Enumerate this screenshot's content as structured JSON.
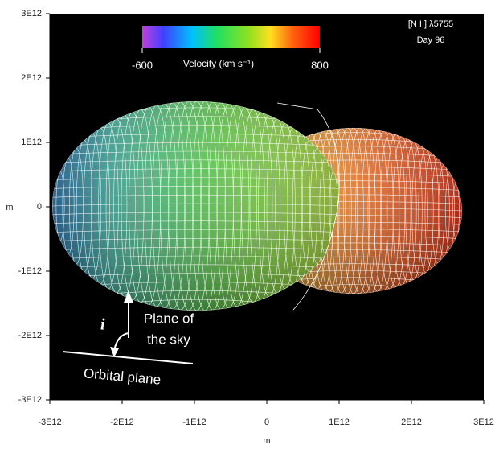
{
  "chart_data": {
    "type": "surface",
    "annotation": [
      "[N II] λ5755",
      "Day 96"
    ],
    "xlabel": "m",
    "ylabel": "m",
    "xlim": [
      -3000000000000.0,
      3000000000000.0
    ],
    "xticks": [
      {
        "value": -3000000000000.0,
        "label": "-3E12"
      },
      {
        "value": -2000000000000.0,
        "label": "-2E12"
      },
      {
        "value": -1000000000000.0,
        "label": "-1E12"
      },
      0,
      {
        "value": 1000000000000.0,
        "label": "1E12"
      },
      {
        "value": 2000000000000.0,
        "label": "2E12"
      },
      {
        "value": 3000000000000.0,
        "label": "3E12"
      }
    ],
    "ylim": [
      -3000000000000.0,
      3000000000000.0
    ],
    "yticks": [
      {
        "value": -3000000000000.0,
        "label": "-3E12"
      },
      {
        "value": -2000000000000.0,
        "label": "-2E12"
      },
      {
        "value": -1000000000000.0,
        "label": "-1E12"
      },
      0,
      {
        "value": 1000000000000.0,
        "label": "1E12"
      },
      {
        "value": 2000000000000.0,
        "label": "2E12"
      },
      {
        "value": 3000000000000.0,
        "label": "3E12"
      }
    ],
    "colorbar": {
      "label": "Velocity (km s⁻¹)",
      "lim": [
        -600,
        800
      ],
      "ticks": [
        -600,
        800
      ]
    },
    "diagram": {
      "angle": "i",
      "sky": [
        "Plane of",
        "the sky"
      ],
      "orbit": "Orbital plane"
    }
  }
}
